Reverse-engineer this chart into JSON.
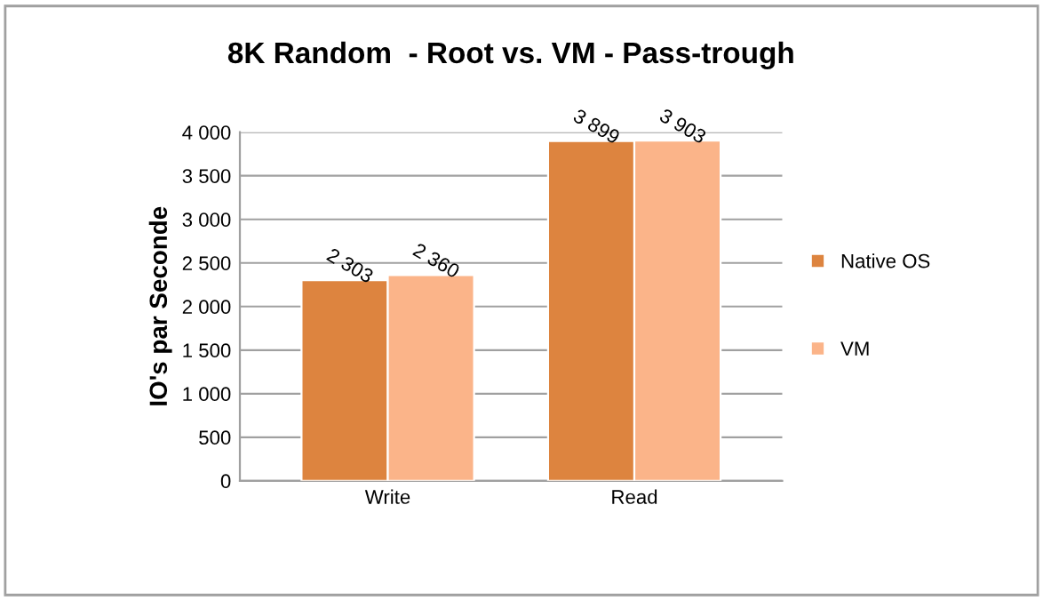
{
  "chart_data": {
    "type": "bar",
    "title": "8K Random  - Root vs. VM - Pass-trough",
    "ylabel": "IO's par Seconde",
    "categories": [
      "Write",
      "Read"
    ],
    "series": [
      {
        "name": "Native OS",
        "color": "#dd843f",
        "values": [
          2303,
          3899
        ],
        "value_labels": [
          "2 303",
          "3 899"
        ]
      },
      {
        "name": "VM",
        "color": "#fbb489",
        "values": [
          2360,
          3903
        ],
        "value_labels": [
          "2 360",
          "3 903"
        ]
      }
    ],
    "ylim": [
      0,
      4000
    ],
    "yticks": [
      0,
      500,
      {
        "value": 1000,
        "label": "1 000"
      },
      {
        "value": 1500,
        "label": "1 500"
      },
      {
        "value": 2000,
        "label": "2 000"
      },
      {
        "value": 2500,
        "label": "2 500"
      },
      {
        "value": 3000,
        "label": "3 000"
      },
      {
        "value": 3500,
        "label": "3 500"
      },
      {
        "value": 4000,
        "label": "4 000"
      }
    ],
    "grid": "y",
    "legend": "right"
  }
}
